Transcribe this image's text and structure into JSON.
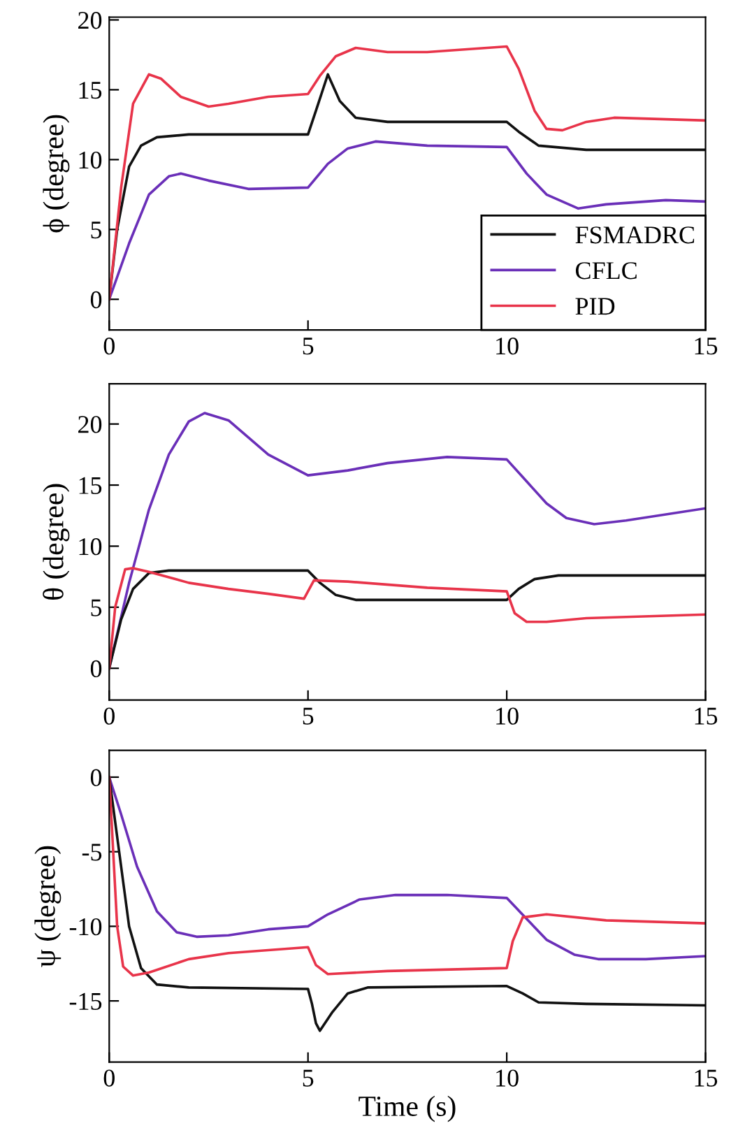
{
  "chart_data": [
    {
      "type": "line",
      "ylabel": "ϕ (degree)",
      "xlim": [
        0,
        15
      ],
      "xticks": [
        0,
        5,
        10,
        15
      ],
      "ylim": [
        -2.2,
        20.2
      ],
      "yticks": [
        0,
        5,
        10,
        15,
        20
      ],
      "legend": "bottom right",
      "grid": false,
      "series": [
        {
          "name": "FSMADRC",
          "color": "#111111",
          "x": [
            0,
            0.2,
            0.5,
            0.8,
            1.2,
            2,
            5,
            5.2,
            5.5,
            5.8,
            6.2,
            7,
            10,
            10.3,
            10.8,
            12,
            15
          ],
          "values": [
            0,
            5,
            9.5,
            11,
            11.6,
            11.8,
            11.8,
            13.5,
            16.1,
            14.2,
            13,
            12.7,
            12.7,
            12,
            11,
            10.7,
            10.7
          ]
        },
        {
          "name": "CFLC",
          "color": "#6a2fb8",
          "x": [
            0,
            0.5,
            1,
            1.5,
            1.8,
            2.5,
            3.5,
            5,
            5.5,
            6,
            6.7,
            8,
            10,
            10.5,
            11,
            11.8,
            12.5,
            14,
            15
          ],
          "values": [
            0,
            4,
            7.5,
            8.8,
            9,
            8.5,
            7.9,
            8,
            9.7,
            10.8,
            11.3,
            11,
            10.9,
            9,
            7.5,
            6.5,
            6.8,
            7.1,
            7
          ]
        },
        {
          "name": "PID",
          "color": "#e8344a",
          "x": [
            0,
            0.3,
            0.6,
            1,
            1.3,
            1.8,
            2.5,
            3,
            4,
            5,
            5.3,
            5.7,
            6.2,
            7,
            8,
            10,
            10.3,
            10.7,
            11,
            11.4,
            12,
            12.7,
            15
          ],
          "values": [
            0,
            8,
            14,
            16.1,
            15.8,
            14.5,
            13.8,
            14,
            14.5,
            14.7,
            16,
            17.4,
            18,
            17.7,
            17.7,
            18.1,
            16.5,
            13.5,
            12.2,
            12.1,
            12.7,
            13,
            12.8
          ]
        }
      ]
    },
    {
      "type": "line",
      "ylabel": "θ (degree)",
      "xlim": [
        0,
        15
      ],
      "xticks": [
        0,
        5,
        10,
        15
      ],
      "ylim": [
        -2.6,
        23.3
      ],
      "yticks": [
        0,
        5,
        10,
        15,
        20
      ],
      "grid": false,
      "series": [
        {
          "color": "#6a2fb8",
          "x": [
            0,
            0.5,
            1,
            1.5,
            2,
            2.4,
            3,
            4,
            5,
            6,
            7,
            8.5,
            10,
            10.5,
            11,
            11.5,
            12.2,
            13,
            15
          ],
          "values": [
            0,
            7,
            13,
            17.5,
            20.2,
            20.9,
            20.3,
            17.5,
            15.8,
            16.2,
            16.8,
            17.3,
            17.1,
            15.3,
            13.5,
            12.3,
            11.8,
            12.1,
            13.1
          ]
        },
        {
          "color": "#111111",
          "x": [
            0,
            0.3,
            0.6,
            1,
            1.5,
            5,
            5.3,
            5.7,
            6.2,
            10,
            10.3,
            10.7,
            11.3,
            15
          ],
          "values": [
            0,
            4,
            6.5,
            7.8,
            8,
            8,
            7,
            6,
            5.6,
            5.6,
            6.5,
            7.3,
            7.6,
            7.6
          ]
        },
        {
          "color": "#e8344a",
          "x": [
            0,
            0.15,
            0.4,
            0.6,
            1,
            2,
            3,
            4,
            4.9,
            5.15,
            6,
            8,
            10,
            10.2,
            10.5,
            11,
            12,
            15
          ],
          "values": [
            0,
            5,
            8.1,
            8.2,
            7.9,
            7,
            6.5,
            6.1,
            5.7,
            7.2,
            7.1,
            6.6,
            6.3,
            4.5,
            3.8,
            3.8,
            4.1,
            4.4
          ]
        }
      ]
    },
    {
      "type": "line",
      "ylabel": "ψ (degree)",
      "xlabel": "Time (s)",
      "xlim": [
        0,
        15
      ],
      "xticks": [
        0,
        5,
        10,
        15
      ],
      "ylim": [
        -19.1,
        1.8
      ],
      "yticks": [
        0,
        -5,
        -10,
        -15
      ],
      "grid": false,
      "series": [
        {
          "color": "#6a2fb8",
          "x": [
            0,
            0.3,
            0.7,
            1.2,
            1.7,
            2.2,
            3,
            4,
            5,
            5.5,
            6.3,
            7.2,
            8.5,
            10,
            10.5,
            11,
            11.7,
            12.3,
            13.5,
            15
          ],
          "values": [
            0,
            -2.5,
            -6,
            -9,
            -10.4,
            -10.7,
            -10.6,
            -10.2,
            -10,
            -9.2,
            -8.2,
            -7.9,
            -7.9,
            -8.1,
            -9.5,
            -10.9,
            -11.9,
            -12.2,
            -12.2,
            -12
          ]
        },
        {
          "color": "#111111",
          "x": [
            0,
            0.25,
            0.5,
            0.8,
            1.2,
            2,
            5,
            5.1,
            5.2,
            5.3,
            5.6,
            6,
            6.5,
            10,
            10.4,
            10.8,
            12,
            15
          ],
          "values": [
            0,
            -5,
            -10,
            -12.8,
            -13.9,
            -14.1,
            -14.2,
            -15.2,
            -16.5,
            -17,
            -15.8,
            -14.5,
            -14.1,
            -14,
            -14.5,
            -15.1,
            -15.2,
            -15.3
          ]
        },
        {
          "color": "#e8344a",
          "x": [
            0,
            0.1,
            0.2,
            0.35,
            0.6,
            1,
            2,
            3,
            5,
            5.2,
            5.5,
            7,
            10,
            10.15,
            10.4,
            11,
            12.5,
            15
          ],
          "values": [
            0,
            -5,
            -10,
            -12.7,
            -13.3,
            -13.1,
            -12.2,
            -11.8,
            -11.4,
            -12.6,
            -13.2,
            -13,
            -12.8,
            -11,
            -9.4,
            -9.2,
            -9.6,
            -9.8
          ]
        }
      ]
    }
  ]
}
